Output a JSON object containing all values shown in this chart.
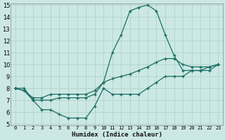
{
  "xlabel": "Humidex (Indice chaleur)",
  "background_color": "#cce8e4",
  "grid_color": "#aacfca",
  "line_color": "#1a6e63",
  "xlim": [
    -0.5,
    23.5
  ],
  "ylim": [
    5,
    15
  ],
  "xticks": [
    0,
    1,
    2,
    3,
    4,
    5,
    6,
    7,
    8,
    9,
    10,
    11,
    12,
    13,
    14,
    15,
    16,
    17,
    18,
    19,
    20,
    21,
    22,
    23
  ],
  "yticks": [
    5,
    6,
    7,
    8,
    9,
    10,
    11,
    12,
    13,
    14,
    15
  ],
  "line1_x": [
    0,
    1,
    2,
    3,
    4,
    5,
    6,
    7,
    8,
    9,
    10,
    11,
    12,
    13,
    14,
    15,
    16,
    17,
    18,
    19,
    20,
    21,
    22,
    23
  ],
  "line1_y": [
    8.0,
    8.0,
    7.0,
    6.2,
    6.2,
    5.8,
    5.5,
    5.5,
    5.5,
    6.5,
    8.0,
    7.5,
    7.5,
    7.5,
    7.5,
    8.0,
    8.5,
    9.0,
    9.0,
    9.0,
    9.5,
    9.5,
    9.8,
    10.0
  ],
  "line2_x": [
    0,
    1,
    2,
    3,
    4,
    5,
    6,
    7,
    8,
    9,
    10,
    11,
    12,
    13,
    14,
    15,
    16,
    17,
    18,
    19,
    20,
    21,
    22,
    23
  ],
  "line2_y": [
    8.0,
    7.8,
    7.0,
    7.0,
    7.0,
    7.2,
    7.2,
    7.2,
    7.2,
    7.5,
    8.5,
    11.0,
    12.5,
    14.5,
    14.8,
    15.0,
    14.5,
    12.5,
    10.75,
    9.5,
    9.5,
    9.5,
    9.5,
    10.0
  ],
  "line3_x": [
    0,
    1,
    2,
    3,
    4,
    5,
    6,
    7,
    8,
    9,
    10,
    11,
    12,
    13,
    14,
    15,
    16,
    17,
    18,
    19,
    20,
    21,
    22,
    23
  ],
  "line3_y": [
    8.0,
    7.8,
    7.2,
    7.2,
    7.5,
    7.5,
    7.5,
    7.5,
    7.5,
    7.8,
    8.5,
    8.8,
    9.0,
    9.2,
    9.5,
    9.8,
    10.2,
    10.5,
    10.5,
    10.0,
    9.8,
    9.8,
    9.8,
    10.0
  ]
}
